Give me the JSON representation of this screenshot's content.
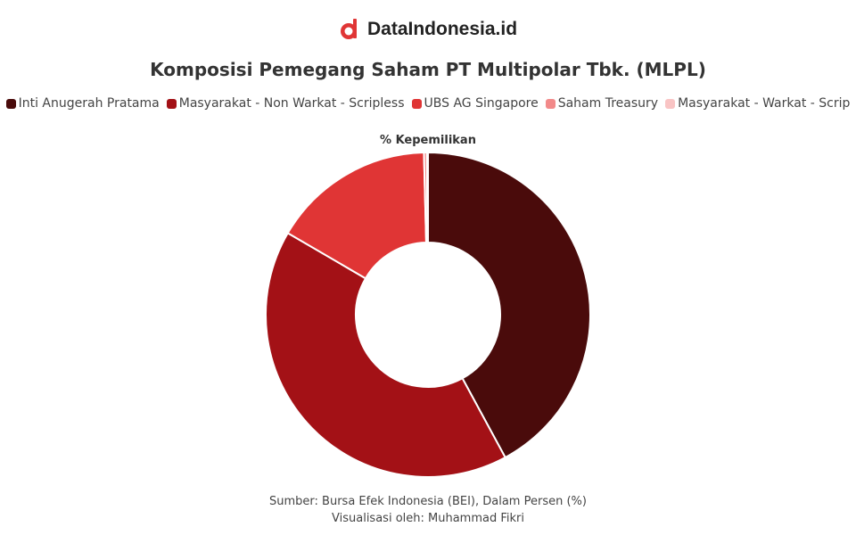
{
  "header": {
    "brand": "DataIndonesia.id"
  },
  "chart_data": {
    "type": "donut",
    "title": "Komposisi Pemegang Saham PT Multipolar Tbk. (MLPL)",
    "subtitle": "% Kepemilikan",
    "categories": [
      "Inti Anugerah Pratama",
      "Masyarakat - Non Warkat - Scripless",
      "UBS AG Singapore",
      "Saham Treasury",
      "Masyarakat - Warkat - Scrip"
    ],
    "values": [
      42.1,
      41.3,
      16.2,
      0.3,
      0.1
    ],
    "colors": [
      "#4a0b0b",
      "#a31116",
      "#e03535",
      "#f28a8a",
      "#f9c4c4"
    ]
  },
  "footer": {
    "source": "Sumber: Bursa Efek Indonesia (BEI), Dalam Persen (%)",
    "credit": "Visualisasi oleh: Muhammad Fikri"
  }
}
